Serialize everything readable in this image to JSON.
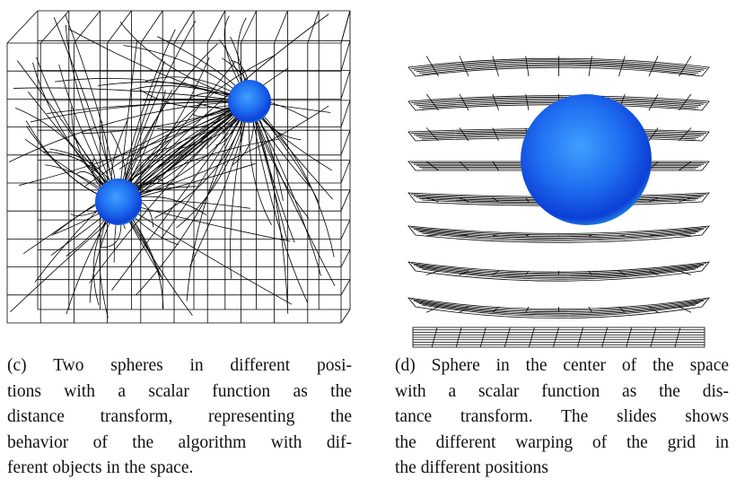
{
  "figures": [
    {
      "caption_lines": [
        "(c) Two spheres in different posi-",
        "tions with a scalar function as the",
        "distance transform, representing the",
        "behavior of the algorithm with dif-",
        "ferent objects in the space."
      ]
    },
    {
      "caption_lines": [
        "(d) Sphere in the center of the space",
        "with a scalar function as the dis-",
        "tance transform. The slides shows",
        "the different warping of the grid in",
        "the different positions"
      ]
    }
  ]
}
